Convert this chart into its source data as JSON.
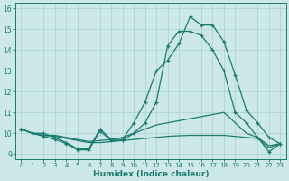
{
  "title": "",
  "xlabel": "Humidex (Indice chaleur)",
  "bg_color": "#cce8e8",
  "grid_color": "#aacfcf",
  "line_color": "#1a7a6e",
  "x": [
    0,
    1,
    2,
    3,
    4,
    5,
    6,
    7,
    8,
    9,
    10,
    11,
    12,
    13,
    14,
    15,
    16,
    17,
    18,
    19,
    20,
    21,
    22,
    23
  ],
  "series1": [
    10.2,
    10.0,
    10.0,
    9.8,
    9.55,
    9.25,
    9.25,
    10.2,
    9.7,
    9.7,
    10.5,
    11.5,
    13.0,
    13.5,
    14.3,
    15.6,
    15.2,
    15.2,
    14.4,
    12.8,
    11.1,
    10.5,
    9.8,
    9.5
  ],
  "series2": [
    10.2,
    10.0,
    9.85,
    9.7,
    9.5,
    9.2,
    9.2,
    10.1,
    9.65,
    9.65,
    10.0,
    10.5,
    11.5,
    14.2,
    14.9,
    14.9,
    14.7,
    14.0,
    13.0,
    11.0,
    10.5,
    9.8,
    9.1,
    9.5
  ],
  "series3": [
    10.2,
    10.0,
    9.9,
    9.9,
    9.8,
    9.7,
    9.6,
    9.65,
    9.7,
    9.8,
    10.0,
    10.2,
    10.4,
    10.5,
    10.6,
    10.7,
    10.8,
    10.9,
    11.0,
    10.5,
    10.0,
    9.8,
    9.4,
    9.5
  ],
  "series4": [
    10.2,
    10.0,
    9.9,
    9.85,
    9.75,
    9.65,
    9.55,
    9.55,
    9.6,
    9.65,
    9.7,
    9.75,
    9.8,
    9.85,
    9.88,
    9.9,
    9.9,
    9.9,
    9.9,
    9.85,
    9.8,
    9.75,
    9.3,
    9.5
  ],
  "ylim": [
    8.75,
    16.25
  ],
  "xlim": [
    -0.5,
    23.5
  ],
  "yticks": [
    9,
    10,
    11,
    12,
    13,
    14,
    15,
    16
  ],
  "xticks": [
    0,
    1,
    2,
    3,
    4,
    5,
    6,
    7,
    8,
    9,
    10,
    11,
    12,
    13,
    14,
    15,
    16,
    17,
    18,
    19,
    20,
    21,
    22,
    23
  ],
  "marker_series": [
    0,
    1
  ]
}
